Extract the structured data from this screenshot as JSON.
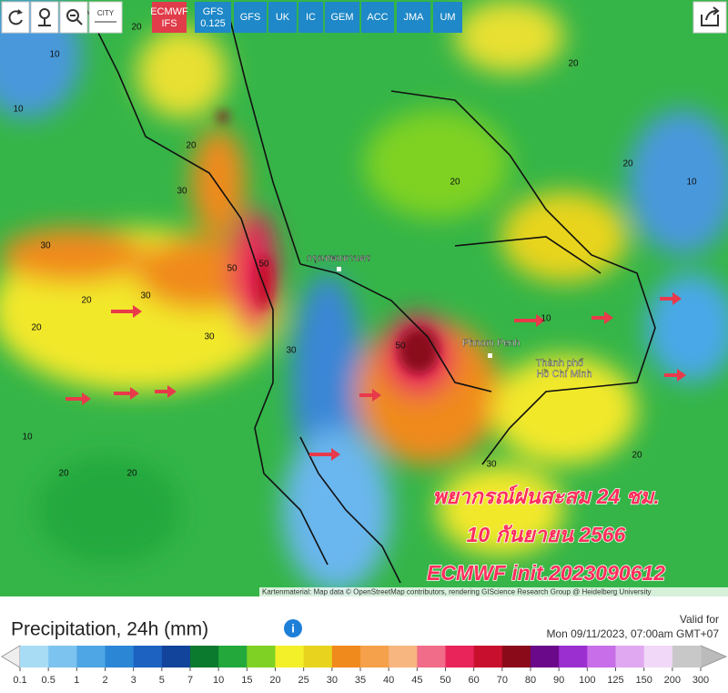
{
  "toolbar": {
    "city": "CITY",
    "models": [
      {
        "label": "ECMWF",
        "sub": "IFS"
      },
      {
        "label": "GFS",
        "sub": "0.125"
      },
      {
        "label": "GFS"
      },
      {
        "label": "UK"
      },
      {
        "label": "IC"
      },
      {
        "label": "GEM"
      },
      {
        "label": "ACC"
      },
      {
        "label": "JMA"
      },
      {
        "label": "UM"
      }
    ]
  },
  "map": {
    "places": [
      "กรุงเทพมหานคร",
      "Phnom Penh",
      "Thành phố",
      "Hồ Chí Minh"
    ],
    "contour_labels": [
      "10",
      "20",
      "10",
      "20",
      "30",
      "30",
      "50",
      "50",
      "20",
      "30",
      "30",
      "20",
      "20",
      "10",
      "20",
      "30",
      "20",
      "20",
      "10",
      "20",
      "10",
      "30",
      "50",
      "20"
    ],
    "overlay": [
      "พยากรณ์ฝนสะสม 24 ชม.",
      "10 กันยายน 2566",
      "ECMWF init.2023090612"
    ],
    "attribution": "Kartenmaterial: Map data © OpenStreetMap contributors, rendering GIScience Research Group @ Heidelberg University"
  },
  "legend": {
    "title": "Precipitation, 24h (mm)",
    "valid_label": "Valid for",
    "valid_time": "Mon 09/11/2023, 07:00am GMT+07",
    "ticks": [
      0.1,
      0.5,
      1,
      2,
      3,
      5,
      7,
      10,
      15,
      20,
      25,
      30,
      35,
      40,
      45,
      50,
      60,
      70,
      80,
      90,
      100,
      125,
      150,
      200,
      300
    ],
    "colors": [
      "#a8dcf5",
      "#7cc3ef",
      "#4ea6e4",
      "#2c86d6",
      "#1d62c0",
      "#12449c",
      "#0b7a2e",
      "#23a83c",
      "#7fd223",
      "#f3f02a",
      "#e8d41e",
      "#f08a1c",
      "#f5a04a",
      "#f7b680",
      "#f06c88",
      "#e8245a",
      "#c8102e",
      "#8a0a1a",
      "#6a0a8a",
      "#9c2fd0",
      "#c76ee8",
      "#e0a8f0",
      "#f2d8f8",
      "#c8c8c8"
    ]
  }
}
